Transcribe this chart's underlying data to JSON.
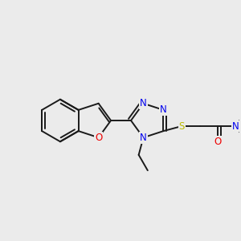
{
  "background_color": "#ebebeb",
  "bond_color": "#1a1a1a",
  "atom_colors": {
    "N": "#0000ee",
    "O": "#ee0000",
    "S": "#bbbb00",
    "C": "#1a1a1a"
  },
  "font_size_atom": 8.5,
  "lw": 1.4
}
